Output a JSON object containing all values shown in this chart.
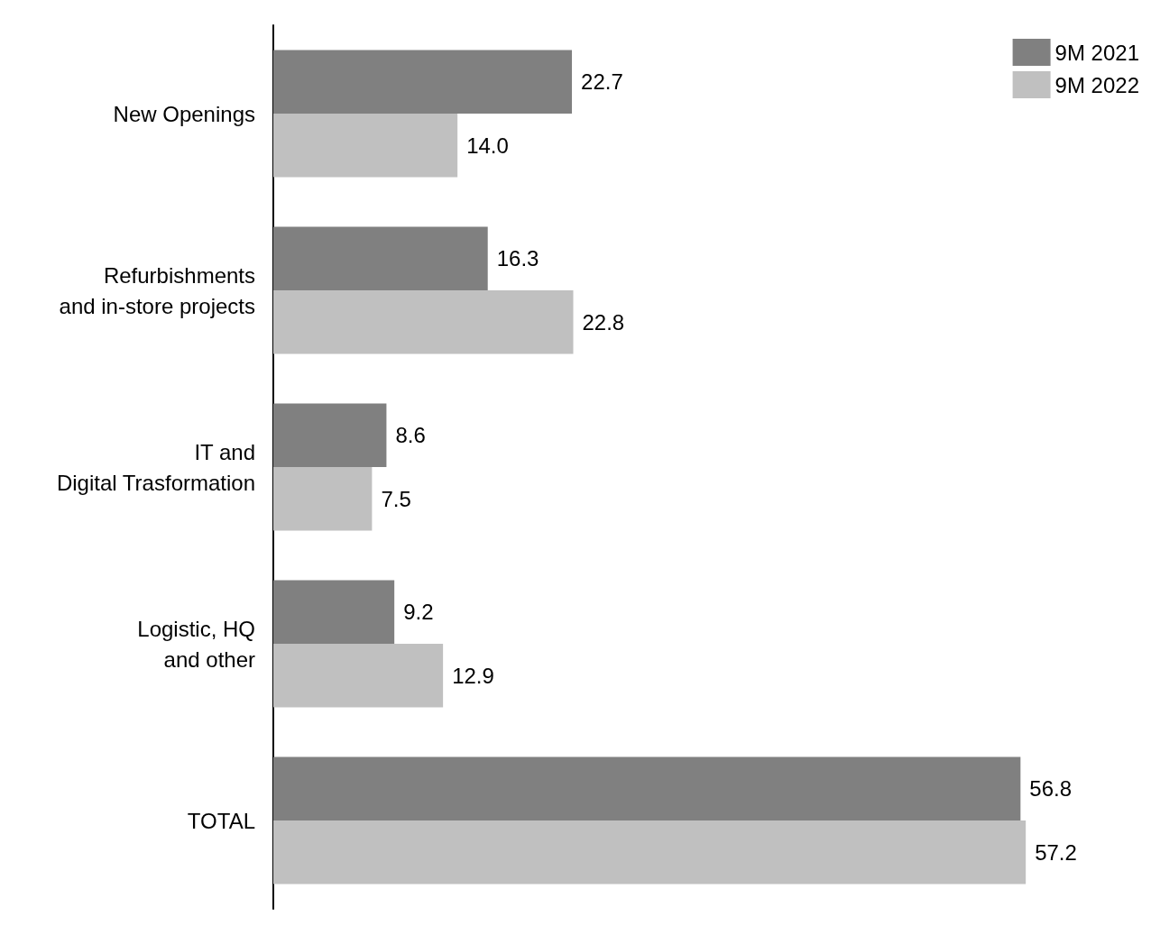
{
  "chart_data": {
    "type": "bar",
    "orientation": "horizontal",
    "categories": [
      "New Openings",
      "Refurbishments\nand in-store projects",
      "IT and\nDigital Trasformation",
      "Logistic, HQ\nand other",
      "TOTAL"
    ],
    "series": [
      {
        "name": "9M 2021",
        "color": "#808080",
        "values": [
          22.7,
          16.3,
          8.6,
          9.2,
          56.8
        ],
        "value_labels": [
          "22.7",
          "16.3",
          "8.6",
          "9.2",
          "56.8"
        ]
      },
      {
        "name": "9M 2022",
        "color": "#c0c0c0",
        "values": [
          14.0,
          22.8,
          7.5,
          12.9,
          57.2
        ],
        "value_labels": [
          "14.0",
          "22.8",
          "7.5",
          "12.9",
          "57.2"
        ]
      }
    ],
    "grid": false,
    "legend": "top right"
  }
}
